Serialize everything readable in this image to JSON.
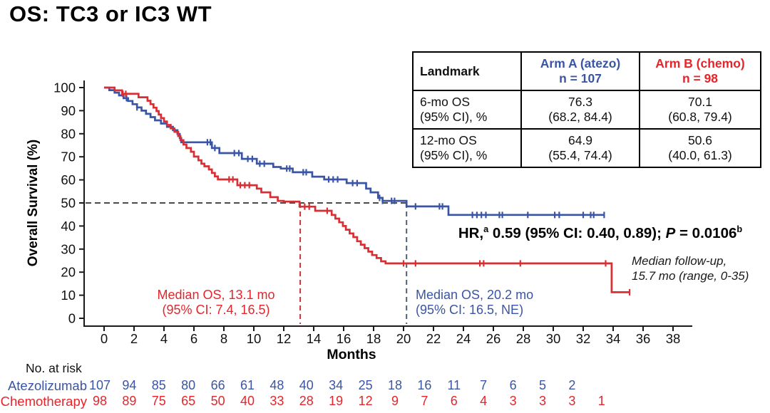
{
  "title": "OS: TC3 or IC3 WT",
  "colors": {
    "blue": "#3A55A6",
    "blue_text": "#3A55A6",
    "red": "#D92F33",
    "red_text": "#E5242B",
    "axis": "#1a1a1a",
    "fifty_line": "#4a4a4a",
    "blue_dash": "#4E6175"
  },
  "axis": {
    "x_label": "Months",
    "y_label": "Overall Survival (%)"
  },
  "landmark_table": {
    "header": {
      "landmark": "Landmark",
      "arm_a_line1": "Arm A (atezo)",
      "arm_a_line2": "n = 107",
      "arm_b_line1": "Arm B (chemo)",
      "arm_b_line2": "n = 98"
    },
    "rows": [
      {
        "label_line1": "6-mo OS",
        "label_line2": "(95% CI), %",
        "arm_a_line1": "76.3",
        "arm_a_line2": "(68.2, 84.4)",
        "arm_b_line1": "70.1",
        "arm_b_line2": "(60.8, 79.4)"
      },
      {
        "label_line1": "12-mo OS",
        "label_line2": "(95% CI), %",
        "arm_a_line1": "64.9",
        "arm_a_line2": "(55.4, 74.4)",
        "arm_b_line1": "50.6",
        "arm_b_line2": "(40.0, 61.3)"
      }
    ]
  },
  "hr_annotation": {
    "prefix": "HR,",
    "sup_a": "a",
    "mid": " 0.59 (95% CI: 0.40, 0.89); ",
    "p_label": "P",
    "p_value": " = 0.0106",
    "sup_b": "b"
  },
  "followup_note": {
    "line1": "Median follow-up,",
    "line2": "15.7 mo (range, 0-35)"
  },
  "median_annotations": {
    "chemo": {
      "line1": "Median OS, 13.1 mo",
      "line2": "(95% CI: 7.4, 16.5)"
    },
    "atezo": {
      "line1": "Median OS, 20.2 mo",
      "line2": "(95% CI: 16.5, NE)"
    }
  },
  "risk_table": {
    "title": "No. at risk",
    "rows": [
      {
        "label": "Atezolizumab",
        "values": [
          "107",
          "94",
          "85",
          "80",
          "66",
          "61",
          "48",
          "40",
          "34",
          "25",
          "18",
          "16",
          "11",
          "7",
          "6",
          "5",
          "2"
        ]
      },
      {
        "label": "Chemotherapy",
        "values": [
          "98",
          "89",
          "75",
          "65",
          "50",
          "40",
          "33",
          "28",
          "19",
          "12",
          "9",
          "7",
          "6",
          "4",
          "3",
          "3",
          "3",
          "1"
        ]
      }
    ]
  },
  "chart_data": {
    "type": "line",
    "subtype": "kaplan-meier-step",
    "title": "OS: TC3 or IC3 WT",
    "xlabel": "Months",
    "ylabel": "Overall Survival (%)",
    "xlim": [
      0,
      38
    ],
    "ylim": [
      0,
      100
    ],
    "x_ticks": [
      0,
      2,
      4,
      6,
      8,
      10,
      12,
      14,
      16,
      18,
      20,
      22,
      24,
      26,
      28,
      30,
      32,
      34,
      36,
      38
    ],
    "y_ticks": [
      0,
      10,
      20,
      30,
      40,
      50,
      60,
      70,
      80,
      90,
      100
    ],
    "grid": false,
    "reference_lines": {
      "horizontal_pct": 50,
      "median_atezo_months": 20.2,
      "median_chemo_months": 13.1
    },
    "hazard_ratio": "0.59",
    "hr_ci": "0.40, 0.89",
    "p_value": "0.0106",
    "series": [
      {
        "name": "Atezolizumab (Arm A)",
        "color": "#3A55A6",
        "n": 107,
        "median_os_months": 20.2,
        "median_ci": "16.5, NE",
        "os_6mo": 76.3,
        "os_12mo": 64.9,
        "end_month": 33.4,
        "steps": [
          [
            0,
            100
          ],
          [
            0.35,
            98.9
          ],
          [
            0.7,
            97.8
          ],
          [
            1.0,
            96.6
          ],
          [
            1.3,
            95.4
          ],
          [
            1.6,
            94.2
          ],
          [
            1.9,
            92.8
          ],
          [
            2.2,
            91.4
          ],
          [
            2.5,
            90.0
          ],
          [
            2.8,
            88.6
          ],
          [
            3.1,
            87.2
          ],
          [
            3.4,
            85.8
          ],
          [
            3.8,
            84.4
          ],
          [
            4.2,
            83.0
          ],
          [
            4.6,
            81.5
          ],
          [
            4.9,
            79.9
          ],
          [
            5.05,
            78.1
          ],
          [
            5.15,
            76.3
          ],
          [
            7.2,
            73.8
          ],
          [
            7.7,
            71.6
          ],
          [
            9.2,
            69.1
          ],
          [
            10.2,
            67.0
          ],
          [
            11.3,
            65.6
          ],
          [
            11.8,
            64.9
          ],
          [
            12.6,
            63.3
          ],
          [
            13.9,
            61.4
          ],
          [
            14.7,
            60.2
          ],
          [
            16.2,
            58.6
          ],
          [
            17.5,
            56.2
          ],
          [
            17.8,
            54.6
          ],
          [
            18.3,
            52.2
          ],
          [
            18.6,
            50.9
          ],
          [
            20.2,
            48.5
          ],
          [
            23.0,
            44.8
          ]
        ],
        "censor_months": [
          1.5,
          2.2,
          6.9,
          7.1,
          7.4,
          8.7,
          9.0,
          9.6,
          9.9,
          10.4,
          10.7,
          12.2,
          12.4,
          13.3,
          13.5,
          15.0,
          15.3,
          15.6,
          16.6,
          16.9,
          18.4,
          18.6,
          19.2,
          19.4,
          20.8,
          22.4,
          22.6,
          24.6,
          24.9,
          25.2,
          25.5,
          26.4,
          26.6,
          28.3,
          30.1,
          30.4,
          32.0,
          32.5,
          32.7,
          33.4
        ]
      },
      {
        "name": "Chemotherapy (Arm B)",
        "color": "#D92F33",
        "n": 98,
        "median_os_months": 13.1,
        "median_ci": "7.4, 16.5",
        "os_6mo": 70.1,
        "os_12mo": 50.6,
        "end_month": 35.1,
        "steps": [
          [
            0,
            100
          ],
          [
            0.7,
            98.8
          ],
          [
            1.2,
            97.3
          ],
          [
            2.3,
            95.8
          ],
          [
            2.9,
            94.3
          ],
          [
            3.1,
            92.8
          ],
          [
            3.3,
            91.3
          ],
          [
            3.5,
            89.8
          ],
          [
            3.65,
            88.3
          ],
          [
            3.8,
            86.8
          ],
          [
            4.0,
            85.3
          ],
          [
            4.2,
            83.8
          ],
          [
            4.45,
            82.3
          ],
          [
            4.7,
            80.8
          ],
          [
            4.95,
            79.0
          ],
          [
            5.1,
            77.2
          ],
          [
            5.3,
            75.3
          ],
          [
            5.5,
            73.8
          ],
          [
            5.8,
            72.2
          ],
          [
            6.0,
            70.1
          ],
          [
            6.3,
            68.5
          ],
          [
            6.5,
            67.0
          ],
          [
            6.7,
            65.9
          ],
          [
            7.0,
            64.5
          ],
          [
            7.2,
            63.0
          ],
          [
            7.4,
            61.5
          ],
          [
            7.6,
            60.2
          ],
          [
            8.9,
            57.7
          ],
          [
            10.2,
            56.2
          ],
          [
            10.5,
            54.6
          ],
          [
            11.1,
            52.5
          ],
          [
            11.6,
            50.9
          ],
          [
            12.0,
            50.6
          ],
          [
            13.05,
            48.4
          ],
          [
            14.1,
            46.6
          ],
          [
            15.2,
            44.8
          ],
          [
            15.45,
            43.2
          ],
          [
            15.7,
            41.6
          ],
          [
            15.95,
            40.0
          ],
          [
            16.15,
            38.4
          ],
          [
            16.4,
            36.8
          ],
          [
            16.65,
            35.2
          ],
          [
            16.9,
            33.4
          ],
          [
            17.15,
            31.9
          ],
          [
            17.4,
            30.4
          ],
          [
            17.65,
            28.9
          ],
          [
            17.9,
            27.4
          ],
          [
            18.2,
            26.1
          ],
          [
            18.5,
            24.7
          ],
          [
            18.8,
            23.8
          ],
          [
            33.9,
            11.3
          ]
        ],
        "censor_months": [
          1.25,
          1.45,
          8.35,
          8.6,
          9.1,
          9.4,
          9.7,
          13.4,
          13.7,
          14.9,
          20.0,
          20.8,
          25.1,
          25.35,
          27.8,
          33.5,
          35.1
        ]
      }
    ]
  }
}
